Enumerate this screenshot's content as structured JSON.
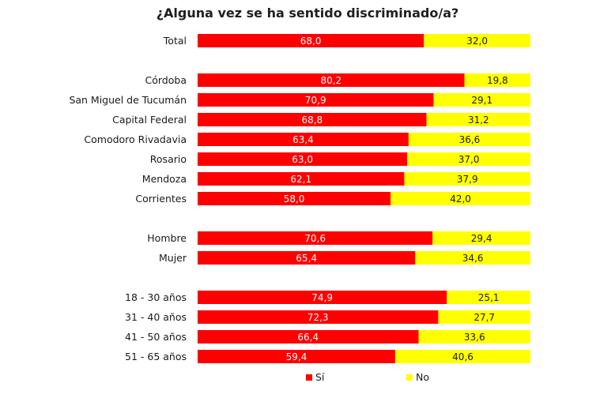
{
  "chart_data": {
    "type": "bar",
    "orientation": "horizontal",
    "stacked": true,
    "title": "¿Alguna vez se ha sentido discriminado/a?",
    "categories": [
      "Total",
      "Córdoba",
      "San Miguel de Tucumán",
      "Capital Federal",
      "Comodoro Rivadavia",
      "Rosario",
      "Mendoza",
      "Corrientes",
      "Hombre",
      "Mujer",
      "18 - 30 años",
      "31 - 40 años",
      "41 - 50 años",
      "51 - 65 años"
    ],
    "groups": [
      1,
      7,
      2,
      4
    ],
    "series": [
      {
        "name": "Sí",
        "color": "#ff0000",
        "values": [
          68.0,
          80.2,
          70.9,
          68.8,
          63.4,
          63.0,
          62.1,
          58.0,
          70.6,
          65.4,
          74.9,
          72.3,
          66.4,
          59.4
        ],
        "labels": [
          "68,0",
          "80,2",
          "70,9",
          "68,8",
          "63,4",
          "63,0",
          "62,1",
          "58,0",
          "70,6",
          "65,4",
          "74,9",
          "72,3",
          "66,4",
          "59,4"
        ]
      },
      {
        "name": "No",
        "color": "#ffff00",
        "values": [
          32.0,
          19.8,
          29.1,
          31.2,
          36.6,
          37.0,
          37.9,
          42.0,
          29.4,
          34.6,
          25.1,
          27.7,
          33.6,
          40.6
        ],
        "labels": [
          "32,0",
          "19,8",
          "29,1",
          "31,2",
          "36,6",
          "37,0",
          "37,9",
          "42,0",
          "29,4",
          "34,6",
          "25,1",
          "27,7",
          "33,6",
          "40,6"
        ]
      }
    ],
    "xlim": [
      0,
      100
    ],
    "grid": false,
    "legend_position": "bottom"
  }
}
